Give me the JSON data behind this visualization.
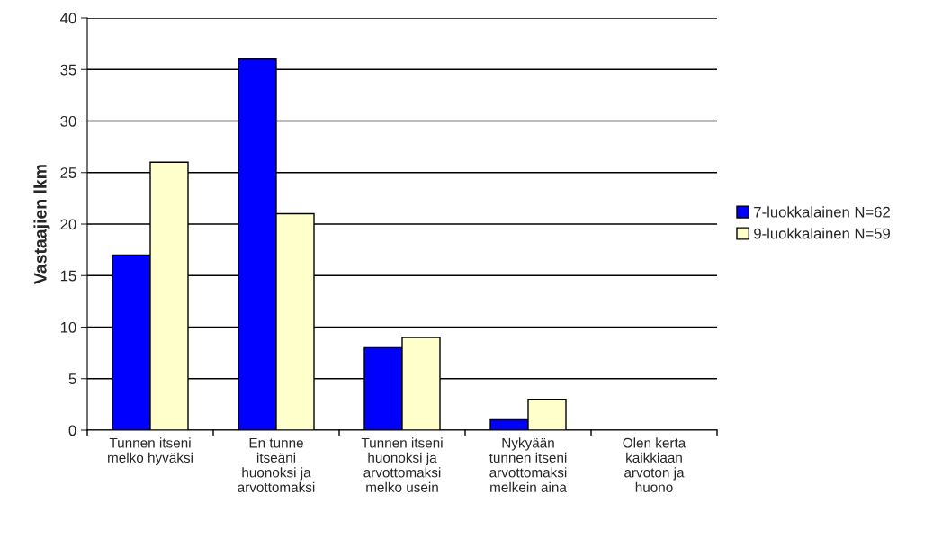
{
  "chart_data": {
    "type": "bar",
    "categories": [
      "Tunnen itseni\nmelko hyväksi",
      "En tunne\nitseäni\nhuonoksi ja\narvottomaksi",
      "Tunnen itseni\nhuonoksi ja\narvottomaksi\nmelko usein",
      "Nykyään\ntunnen itseni\narvottomaksi\nmelkein aina",
      "Olen kerta\nkaikkiaan\narvoton ja\nhuono"
    ],
    "series": [
      {
        "name": "7-luokkalainen N=62",
        "color": "#0000ff",
        "values": [
          17,
          36,
          8,
          1,
          0
        ]
      },
      {
        "name": "9-luokkalainen N=59",
        "color": "#ffffcc",
        "values": [
          26,
          21,
          9,
          3,
          0
        ]
      }
    ],
    "ylabel": "Vastaajien lkm",
    "ylim": [
      0,
      40
    ],
    "yticks": [
      0,
      5,
      10,
      15,
      20,
      25,
      30,
      35,
      40
    ],
    "grid": "y",
    "legend": "right"
  }
}
